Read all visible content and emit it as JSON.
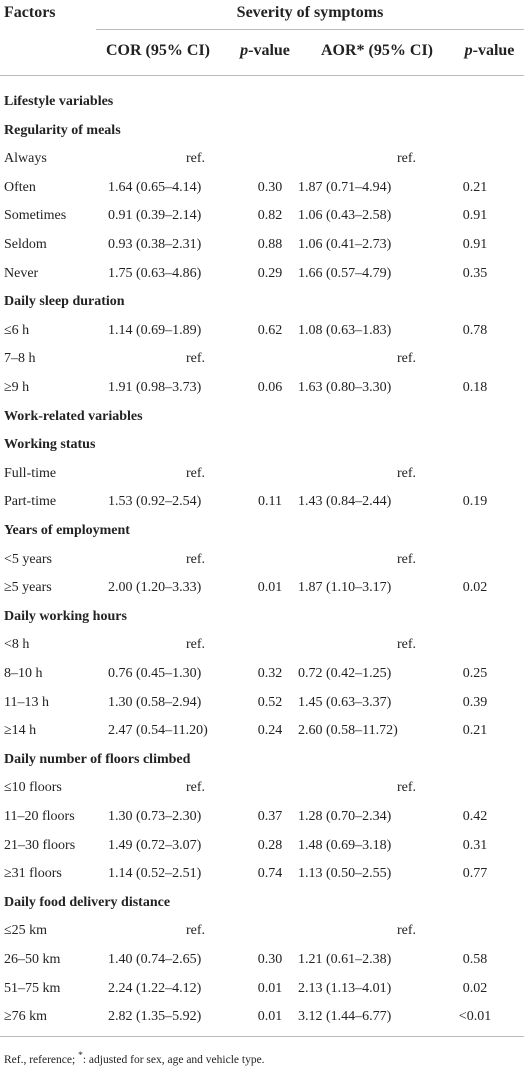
{
  "header": {
    "factors": "Factors",
    "severity": "Severity of symptoms",
    "columns": [
      [
        "COR (95% CI)"
      ],
      [
        "p",
        "-value"
      ],
      [
        "AOR* (95% CI)"
      ],
      [
        "p",
        "-value"
      ]
    ]
  },
  "sections": [
    {
      "title": "Lifestyle variables",
      "groups": [
        {
          "title": "Regularity of meals",
          "rows": [
            [
              "Always",
              "ref.",
              null,
              "ref.",
              null
            ],
            [
              "Often",
              "1.64 (0.65–4.14)",
              "0.30",
              "1.87 (0.71–4.94)",
              "0.21"
            ],
            [
              "Sometimes",
              "0.91 (0.39–2.14)",
              "0.82",
              "1.06 (0.43–2.58)",
              "0.91"
            ],
            [
              "Seldom",
              "0.93 (0.38–2.31)",
              "0.88",
              "1.06 (0.41–2.73)",
              "0.91"
            ],
            [
              "Never",
              "1.75 (0.63–4.86)",
              "0.29",
              "1.66 (0.57–4.79)",
              "0.35"
            ]
          ]
        },
        {
          "title": "Daily sleep duration",
          "rows": [
            [
              "≤6 h",
              "1.14 (0.69–1.89)",
              "0.62",
              "1.08 (0.63–1.83)",
              "0.78"
            ],
            [
              "7–8 h",
              "ref.",
              null,
              "ref.",
              null
            ],
            [
              "≥9 h",
              "1.91 (0.98–3.73)",
              "0.06",
              "1.63 (0.80–3.30)",
              "0.18"
            ]
          ]
        }
      ]
    },
    {
      "title": "Work-related variables",
      "groups": [
        {
          "title": "Working status",
          "rows": [
            [
              "Full-time",
              "ref.",
              null,
              "ref.",
              null
            ],
            [
              "Part-time",
              "1.53 (0.92–2.54)",
              "0.11",
              "1.43 (0.84–2.44)",
              "0.19"
            ]
          ]
        },
        {
          "title": "Years of employment",
          "rows": [
            [
              "<5 years",
              "ref.",
              null,
              "ref.",
              null
            ],
            [
              "≥5 years",
              "2.00 (1.20–3.33)",
              "0.01",
              "1.87 (1.10–3.17)",
              "0.02"
            ]
          ]
        },
        {
          "title": "Daily working hours",
          "rows": [
            [
              "<8 h",
              "ref.",
              null,
              "ref.",
              null
            ],
            [
              "8–10 h",
              "0.76 (0.45–1.30)",
              "0.32",
              "0.72 (0.42–1.25)",
              "0.25"
            ],
            [
              "11–13 h",
              "1.30 (0.58–2.94)",
              "0.52",
              "1.45 (0.63–3.37)",
              "0.39"
            ],
            [
              "≥14 h",
              "2.47 (0.54–11.20)",
              "0.24",
              "2.60 (0.58–11.72)",
              "0.21"
            ]
          ]
        },
        {
          "title": "Daily number of floors climbed",
          "rows": [
            [
              "≤10 floors",
              "ref.",
              null,
              "ref.",
              null
            ],
            [
              "11–20 floors",
              "1.30 (0.73–2.30)",
              "0.37",
              "1.28 (0.70–2.34)",
              "0.42"
            ],
            [
              "21–30 floors",
              "1.49 (0.72–3.07)",
              "0.28",
              "1.48 (0.69–3.18)",
              "0.31"
            ],
            [
              "≥31 floors",
              "1.14 (0.52–2.51)",
              "0.74",
              "1.13 (0.50–2.55)",
              "0.77"
            ]
          ]
        },
        {
          "title": "Daily food delivery distance",
          "rows": [
            [
              "≤25 km",
              "ref.",
              null,
              "ref.",
              null
            ],
            [
              "26–50 km",
              "1.40 (0.74–2.65)",
              "0.30",
              "1.21 (0.61–2.38)",
              "0.58"
            ],
            [
              "51–75 km",
              "2.24 (1.22–4.12)",
              "0.01",
              "2.13 (1.13–4.01)",
              "0.02"
            ],
            [
              "≥76 km",
              "2.82 (1.35–5.92)",
              "0.01",
              "3.12 (1.44–6.77)",
              "<0.01"
            ]
          ]
        }
      ]
    }
  ],
  "footnote": [
    "Ref., reference; ",
    "*",
    ": adjusted for sex, age and vehicle type."
  ]
}
